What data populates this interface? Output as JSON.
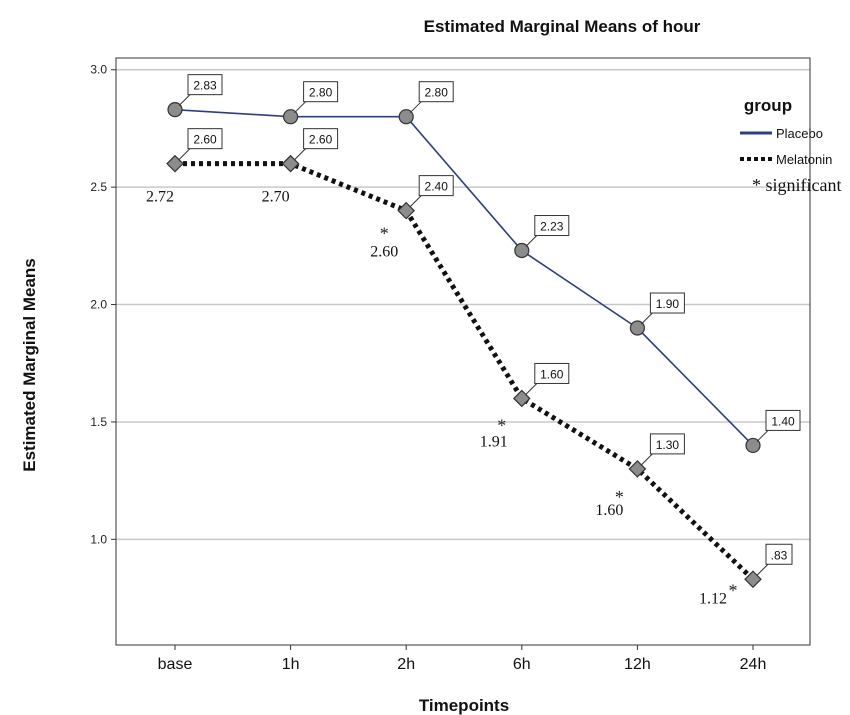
{
  "chart_data": {
    "type": "line",
    "title": "Estimated Marginal Means of hour",
    "xlabel": "Timepoints",
    "ylabel": "Estimated Marginal Means",
    "categories": [
      "base",
      "1h",
      "2h",
      "6h",
      "12h",
      "24h"
    ],
    "ylim": [
      0.55,
      3.05
    ],
    "yticks": [
      "1.0",
      "1.5",
      "2.0",
      "2.5",
      "3.0"
    ],
    "grid": true,
    "legend": {
      "title": "group",
      "placement": "top-right",
      "note": "* significant"
    },
    "series": [
      {
        "name": "Placebo",
        "color": "#2b3d8f",
        "line_style": "solid",
        "marker": "circle",
        "values": [
          2.83,
          2.8,
          2.8,
          2.23,
          1.9,
          1.4
        ],
        "labels": [
          "2.83",
          "2.80",
          "2.80",
          "2.23",
          "1.90",
          "1.40"
        ]
      },
      {
        "name": "Melatonin",
        "color": "#111111",
        "line_style": "dotted",
        "marker": "diamond",
        "values": [
          2.6,
          2.6,
          2.4,
          1.6,
          1.3,
          0.83
        ],
        "labels": [
          "2.60",
          "2.60",
          "2.40",
          "1.60",
          "1.30",
          ".83"
        ]
      }
    ],
    "annotations": [
      {
        "category": "base",
        "text": "2.72",
        "significant": false
      },
      {
        "category": "1h",
        "text": "2.70",
        "significant": false
      },
      {
        "category": "2h",
        "text": "2.60",
        "significant": true
      },
      {
        "category": "6h",
        "text": "1.91",
        "significant": true
      },
      {
        "category": "12h",
        "text": "1.60",
        "significant": true
      },
      {
        "category": "24h",
        "text": "1.12",
        "significant": true
      }
    ],
    "star_symbol": "*"
  }
}
